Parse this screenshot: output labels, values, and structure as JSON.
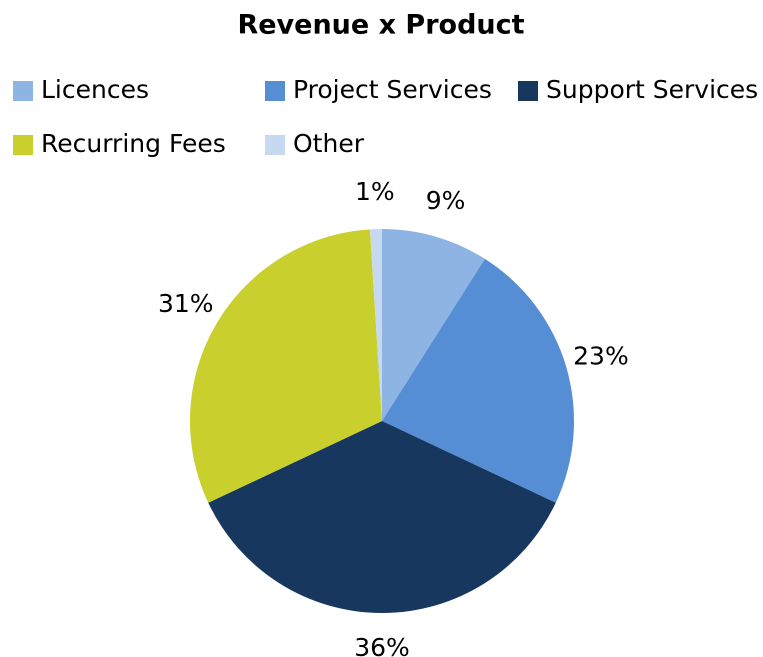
{
  "chart_data": {
    "type": "pie",
    "title": "Revenue x Product",
    "categories": [
      "Licences",
      "Project Services",
      "Support Services",
      "Recurring Fees",
      "Other"
    ],
    "values": [
      9,
      23,
      36,
      31,
      1
    ],
    "value_labels": [
      "9%",
      "23%",
      "36%",
      "31%",
      "1%"
    ],
    "colors": [
      "#8eb4e3",
      "#558ed5",
      "#17375e",
      "#c9cf2c",
      "#c6d9f1"
    ],
    "legend": "top"
  }
}
